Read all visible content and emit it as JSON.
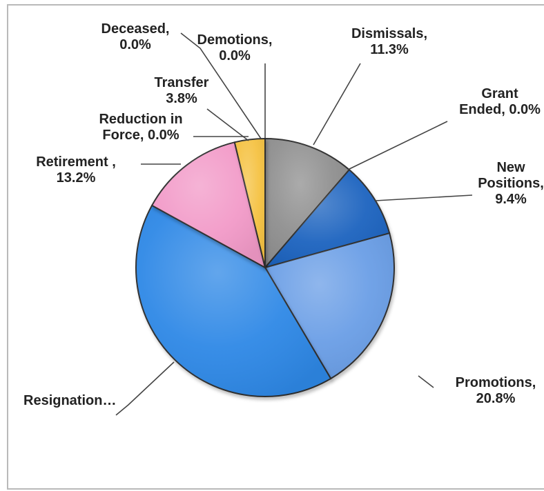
{
  "chart_data": {
    "type": "pie",
    "title": "",
    "slices": [
      {
        "name": "Demotions",
        "label_lines": [
          "Demotions,",
          "0.0%"
        ],
        "value": 0.0,
        "color": "#7a7a7a"
      },
      {
        "name": "Dismissals",
        "label_lines": [
          "Dismissals,",
          "11.3%"
        ],
        "value": 11.3,
        "color": "#8f8f8f"
      },
      {
        "name": "Grant Ended",
        "label_lines": [
          "Grant",
          "Ended, 0.0%"
        ],
        "value": 0.0,
        "color": "#1f4f9e"
      },
      {
        "name": "New Positions",
        "label_lines": [
          "New",
          "Positions,",
          "9.4%"
        ],
        "value": 9.4,
        "color": "#1a64bf"
      },
      {
        "name": "Promotions",
        "label_lines": [
          "Promotions,",
          "20.8%"
        ],
        "value": 20.8,
        "color": "#6a9ee6"
      },
      {
        "name": "Resignation",
        "label_lines": [
          "Resignation…"
        ],
        "value": 41.5,
        "color": "#2d88e6"
      },
      {
        "name": "Retirement",
        "label_lines": [
          "Retirement ,",
          "13.2%"
        ],
        "value": 13.2,
        "color": "#f29ac8"
      },
      {
        "name": "Reduction in Force",
        "label_lines": [
          "Reduction in",
          "Force, 0.0%"
        ],
        "value": 0.0,
        "color": "#9a9a9a"
      },
      {
        "name": "Transfer",
        "label_lines": [
          "Transfer",
          "3.8%"
        ],
        "value": 3.8,
        "color": "#f5c242"
      },
      {
        "name": "Deceased",
        "label_lines": [
          "Deceased,",
          "0.0%"
        ],
        "value": 0.0,
        "color": "#6d6d6d"
      }
    ]
  }
}
